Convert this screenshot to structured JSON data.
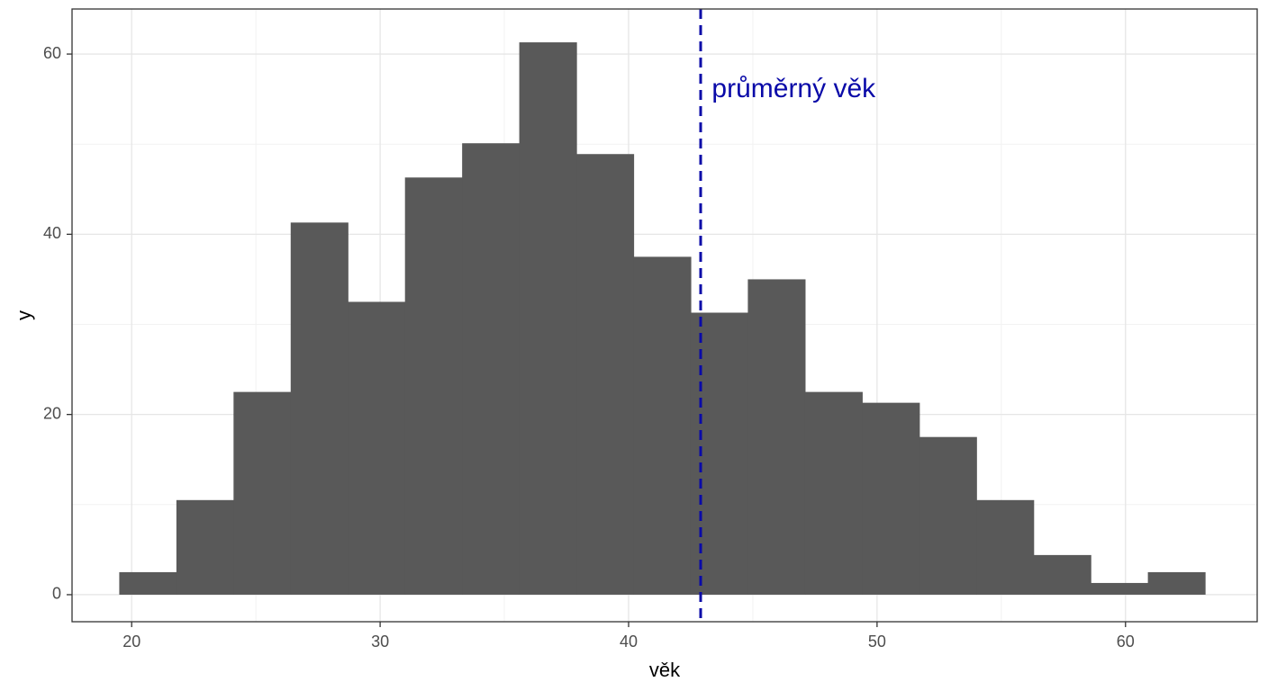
{
  "chart_data": {
    "type": "histogram",
    "xlabel": "věk",
    "ylabel": "y",
    "xlim": [
      17.6,
      65.3
    ],
    "ylim": [
      -3.0,
      65.0
    ],
    "x_ticks": [
      20,
      30,
      40,
      50,
      60
    ],
    "y_ticks": [
      0,
      20,
      40,
      60
    ],
    "x_tick_labels": [
      "20",
      "30",
      "40",
      "50",
      "60"
    ],
    "y_tick_labels": [
      "0",
      "20",
      "40",
      "60"
    ],
    "grid": true,
    "legend": "none",
    "bar_color": "#595959",
    "bins": [
      {
        "x0": 19.5,
        "x1": 21.8,
        "count": 2.5
      },
      {
        "x0": 21.8,
        "x1": 24.1,
        "count": 10.5
      },
      {
        "x0": 24.1,
        "x1": 26.4,
        "count": 22.5
      },
      {
        "x0": 26.4,
        "x1": 28.7,
        "count": 41.3
      },
      {
        "x0": 28.7,
        "x1": 31.0,
        "count": 32.5
      },
      {
        "x0": 31.0,
        "x1": 33.3,
        "count": 46.3
      },
      {
        "x0": 33.3,
        "x1": 35.6,
        "count": 50.1
      },
      {
        "x0": 35.6,
        "x1": 37.9,
        "count": 61.3
      },
      {
        "x0": 37.9,
        "x1": 40.2,
        "count": 48.9
      },
      {
        "x0": 40.2,
        "x1": 42.5,
        "count": 37.5
      },
      {
        "x0": 42.5,
        "x1": 44.8,
        "count": 31.3
      },
      {
        "x0": 44.8,
        "x1": 47.1,
        "count": 35.0
      },
      {
        "x0": 47.1,
        "x1": 49.4,
        "count": 22.5
      },
      {
        "x0": 49.4,
        "x1": 51.7,
        "count": 21.3
      },
      {
        "x0": 51.7,
        "x1": 54.0,
        "count": 17.5
      },
      {
        "x0": 54.0,
        "x1": 56.3,
        "count": 10.5
      },
      {
        "x0": 56.3,
        "x1": 58.6,
        "count": 4.4
      },
      {
        "x0": 58.6,
        "x1": 60.9,
        "count": 1.3
      },
      {
        "x0": 60.9,
        "x1": 63.2,
        "count": 2.5
      }
    ],
    "reference_line": {
      "x": 42.9,
      "style": "dashed",
      "color": "#0a0aa8"
    },
    "annotation": {
      "text": "průměrný věk",
      "x": 43.35,
      "y": 56.0,
      "color": "#0a0aa8"
    }
  }
}
